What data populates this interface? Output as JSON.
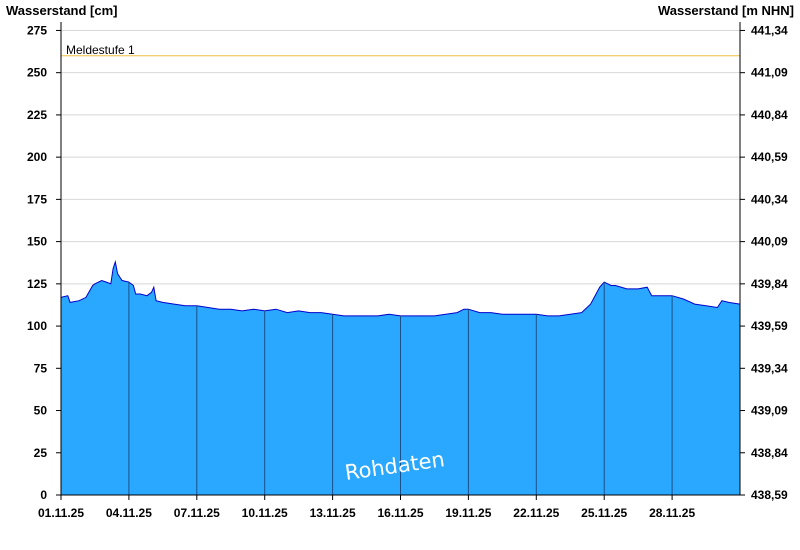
{
  "chart_data": {
    "type": "area",
    "y_label_left": "Wasserstand [cm]",
    "y_label_right": "Wasserstand [m NHN]",
    "ylim": [
      0,
      280
    ],
    "yticks_left": [
      0,
      25,
      50,
      75,
      100,
      125,
      150,
      175,
      200,
      225,
      250,
      275
    ],
    "yticks_right": [
      "438,59",
      "438,84",
      "439,09",
      "439,34",
      "439,59",
      "439,84",
      "440,09",
      "440,34",
      "440,59",
      "440,84",
      "441,09",
      "441,34"
    ],
    "x_tick_labels": [
      "01.11.25",
      "04.11.25",
      "07.11.25",
      "10.11.25",
      "13.11.25",
      "16.11.25",
      "19.11.25",
      "22.11.25",
      "25.11.25",
      "28.11.25"
    ],
    "x_day_range": [
      1,
      31
    ],
    "series": [
      {
        "x": [
          1.0,
          1.3,
          1.4,
          1.8,
          2.1,
          2.4,
          2.5,
          2.8,
          3.0,
          3.2,
          3.3,
          3.4,
          3.5,
          3.6,
          3.7,
          4.0,
          4.2,
          4.3,
          4.5,
          4.8,
          5.0,
          5.1,
          5.2,
          5.5,
          6.0,
          6.5,
          7.0,
          7.5,
          8.0,
          8.5,
          9.0,
          9.5,
          10.0,
          10.5,
          11.0,
          11.5,
          12.0,
          12.5,
          13.0,
          13.5,
          14.0,
          14.5,
          15.0,
          15.5,
          16.0,
          16.5,
          17.0,
          17.5,
          18.0,
          18.5,
          18.8,
          19.0,
          19.5,
          20.0,
          20.5,
          21.0,
          21.5,
          22.0,
          22.5,
          23.0,
          23.5,
          24.0,
          24.4,
          24.8,
          25.0,
          25.3,
          25.5,
          26.0,
          26.5,
          26.9,
          27.1,
          27.5,
          28.0,
          28.5,
          29.0,
          29.5,
          30.0,
          30.2,
          30.5,
          31.0
        ],
        "values": [
          117,
          118,
          114,
          115,
          117,
          124,
          125,
          127,
          126,
          125,
          134,
          138,
          131,
          129,
          127,
          126,
          124,
          119,
          119,
          118,
          120,
          123,
          115,
          114,
          113,
          112,
          112,
          111,
          110,
          110,
          109,
          110,
          109,
          110,
          108,
          109,
          108,
          108,
          107,
          106,
          106,
          106,
          106,
          107,
          106,
          106,
          106,
          106,
          107,
          108,
          110,
          110,
          108,
          108,
          107,
          107,
          107,
          107,
          106,
          106,
          107,
          108,
          113,
          123,
          126,
          124,
          124,
          122,
          122,
          123,
          118,
          118,
          118,
          116,
          113,
          112,
          111,
          115,
          114,
          113
        ]
      }
    ],
    "threshold": {
      "label": "Meldestufe 1",
      "value": 260,
      "color": "#f0c040"
    },
    "colors": {
      "fill": "#2aa8ff",
      "outline": "#0000cc",
      "vline": "#1a4f8a",
      "grid": "#d8d8d8"
    },
    "watermark": "Rohdaten",
    "grid": true
  }
}
